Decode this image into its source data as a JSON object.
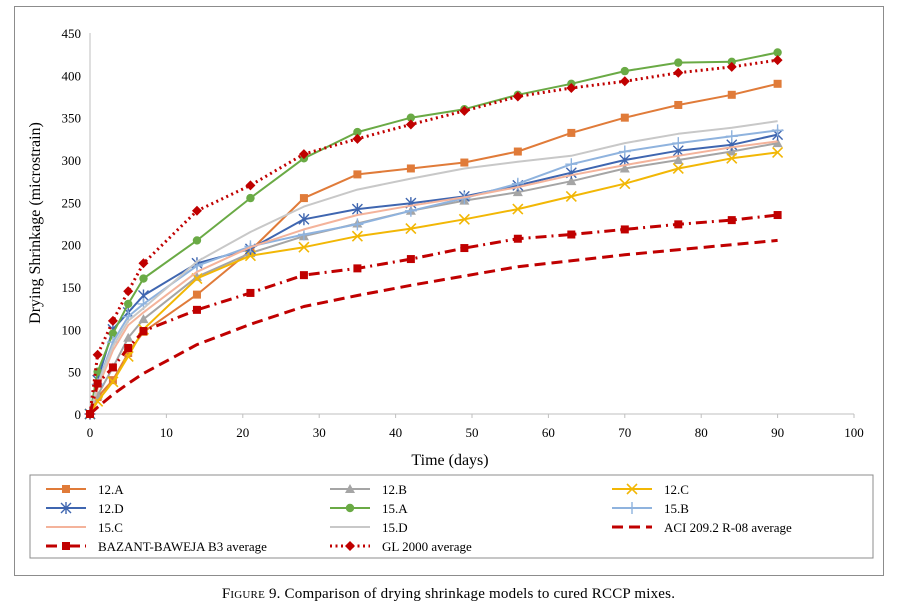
{
  "caption": {
    "label": "Figure 9.",
    "text": "Comparison of drying shrinkage models to cured RCCP mixes."
  },
  "chart_data": {
    "type": "line",
    "xlabel": "Time (days)",
    "ylabel": "Drying Shrinkage (microstrain)",
    "xlim": [
      0,
      100
    ],
    "ylim": [
      0,
      450
    ],
    "xticks": [
      0,
      10,
      20,
      30,
      40,
      50,
      60,
      70,
      80,
      90,
      100
    ],
    "yticks": [
      0,
      50,
      100,
      150,
      200,
      250,
      300,
      350,
      400,
      450
    ],
    "grid": false,
    "legend_position": "bottom",
    "series": [
      {
        "name": "12.A",
        "color": "#e07b39",
        "marker": "square",
        "dash": "solid",
        "x": [
          0,
          1,
          3,
          5,
          7,
          14,
          21,
          28,
          35,
          42,
          49,
          56,
          63,
          70,
          77,
          84,
          90
        ],
        "y": [
          0,
          20,
          40,
          72,
          97,
          141,
          193,
          255,
          283,
          290,
          297,
          310,
          332,
          350,
          365,
          377,
          390
        ]
      },
      {
        "name": "12.B",
        "color": "#a5a5a5",
        "marker": "triangle",
        "dash": "solid",
        "x": [
          0,
          1,
          3,
          5,
          7,
          14,
          21,
          28,
          35,
          42,
          49,
          56,
          63,
          70,
          77,
          84,
          90
        ],
        "y": [
          0,
          22,
          55,
          90,
          112,
          162,
          190,
          210,
          225,
          240,
          252,
          262,
          275,
          290,
          300,
          310,
          320
        ]
      },
      {
        "name": "12.C",
        "color": "#f2b705",
        "marker": "x",
        "dash": "solid",
        "x": [
          0,
          1,
          3,
          5,
          7,
          14,
          21,
          28,
          35,
          42,
          49,
          56,
          63,
          70,
          77,
          84,
          90
        ],
        "y": [
          0,
          15,
          38,
          68,
          100,
          160,
          187,
          197,
          210,
          219,
          230,
          242,
          257,
          272,
          290,
          302,
          309
        ]
      },
      {
        "name": "12.D",
        "color": "#3f66b0",
        "marker": "star",
        "dash": "solid",
        "x": [
          0,
          1,
          3,
          5,
          7,
          14,
          21,
          28,
          35,
          42,
          49,
          56,
          63,
          70,
          77,
          84,
          90
        ],
        "y": [
          0,
          40,
          100,
          120,
          140,
          178,
          195,
          230,
          242,
          249,
          257,
          270,
          285,
          300,
          311,
          318,
          330
        ]
      },
      {
        "name": "15.A",
        "color": "#6aaa45",
        "marker": "circle",
        "dash": "solid",
        "x": [
          0,
          1,
          3,
          5,
          7,
          14,
          21,
          28,
          35,
          42,
          49,
          56,
          63,
          70,
          77,
          84,
          90
        ],
        "y": [
          0,
          50,
          95,
          130,
          160,
          205,
          255,
          302,
          333,
          350,
          360,
          377,
          390,
          405,
          415,
          416,
          427
        ]
      },
      {
        "name": "15.B",
        "color": "#8fb3de",
        "marker": "plus",
        "dash": "solid",
        "x": [
          0,
          1,
          3,
          5,
          7,
          14,
          21,
          28,
          35,
          42,
          49,
          56,
          63,
          70,
          77,
          84,
          90
        ],
        "y": [
          0,
          35,
          85,
          115,
          130,
          175,
          198,
          212,
          224,
          240,
          255,
          272,
          295,
          310,
          320,
          328,
          335
        ]
      },
      {
        "name": "15.C",
        "color": "#f4b39b",
        "marker": "none",
        "dash": "solid",
        "x": [
          0,
          1,
          3,
          5,
          7,
          14,
          21,
          28,
          35,
          42,
          49,
          56,
          63,
          70,
          77,
          84,
          90
        ],
        "y": [
          0,
          30,
          75,
          105,
          120,
          168,
          197,
          218,
          235,
          246,
          256,
          268,
          282,
          294,
          305,
          315,
          322
        ]
      },
      {
        "name": "15.D",
        "color": "#c8c8c8",
        "marker": "none",
        "dash": "solid",
        "x": [
          0,
          1,
          3,
          5,
          7,
          14,
          21,
          28,
          35,
          42,
          49,
          56,
          63,
          70,
          77,
          84,
          90
        ],
        "y": [
          0,
          35,
          80,
          110,
          125,
          180,
          215,
          245,
          265,
          278,
          290,
          298,
          305,
          320,
          331,
          338,
          346
        ]
      },
      {
        "name": "ACI 209.2 R-08  average",
        "color": "#c00000",
        "marker": "none",
        "dash": "dash",
        "x": [
          0,
          1,
          3,
          5,
          7,
          14,
          21,
          28,
          35,
          42,
          49,
          56,
          63,
          70,
          77,
          84,
          90
        ],
        "y": [
          0,
          8,
          23,
          36,
          48,
          82,
          106,
          127,
          140,
          152,
          163,
          174,
          181,
          188,
          194,
          200,
          205
        ]
      },
      {
        "name": "BAZANT-BAWEJA B3 average",
        "color": "#c00000",
        "marker": "square",
        "dash": "dashdot",
        "x": [
          0,
          1,
          3,
          5,
          7,
          14,
          21,
          28,
          35,
          42,
          49,
          56,
          63,
          70,
          77,
          84,
          90
        ],
        "y": [
          0,
          36,
          55,
          78,
          98,
          123,
          143,
          164,
          172,
          183,
          196,
          207,
          212,
          218,
          224,
          229,
          235
        ]
      },
      {
        "name": "GL 2000 average",
        "color": "#c00000",
        "marker": "diamond",
        "dash": "dot",
        "x": [
          0,
          1,
          3,
          5,
          7,
          14,
          21,
          28,
          35,
          42,
          49,
          56,
          63,
          70,
          77,
          84,
          90
        ],
        "y": [
          0,
          70,
          110,
          145,
          178,
          240,
          270,
          307,
          325,
          342,
          358,
          375,
          385,
          393,
          403,
          410,
          418
        ]
      }
    ]
  }
}
